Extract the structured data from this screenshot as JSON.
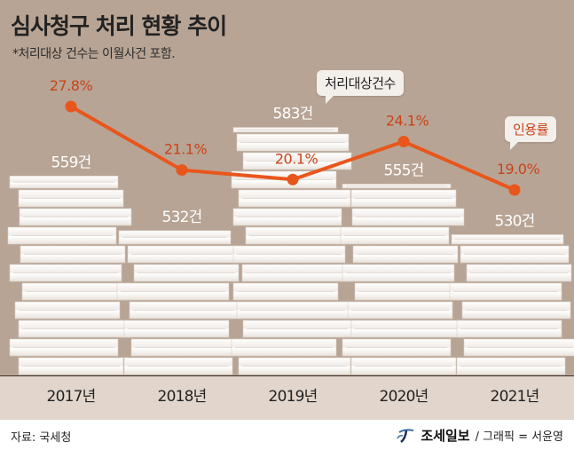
{
  "title": "심사청구 처리 현황 추이",
  "subtitle": "*처리대상 건수는 이월사건 포함.",
  "callouts": {
    "count": "처리대상건수",
    "rate": "인용률"
  },
  "footer": {
    "source": "자료: 국세청",
    "brand": "조세일보",
    "credit": "/ 그래픽 = 서윤영"
  },
  "colors": {
    "background": "#b8a494",
    "band": "#e2d6cc",
    "line": "#e8561c",
    "rate_label": "#c8441a",
    "paper": "#f7f4f1"
  },
  "chart_data": {
    "type": "bar+line",
    "title": "심사청구 처리 현황 추이",
    "categories": [
      "2017년",
      "2018년",
      "2019년",
      "2020년",
      "2021년"
    ],
    "series": [
      {
        "name": "처리대상건수",
        "type": "bar",
        "unit": "건",
        "values": [
          559,
          532,
          583,
          555,
          530
        ],
        "labels": [
          "559건",
          "532건",
          "583건",
          "555건",
          "530건"
        ]
      },
      {
        "name": "인용률",
        "type": "line",
        "unit": "%",
        "values": [
          27.8,
          21.1,
          20.1,
          24.1,
          19.0
        ],
        "labels": [
          "27.8%",
          "21.1%",
          "20.1%",
          "24.1%",
          "19.0%"
        ]
      }
    ],
    "xlabel": "",
    "ylabel": "",
    "grid": false,
    "legend": "callouts"
  }
}
